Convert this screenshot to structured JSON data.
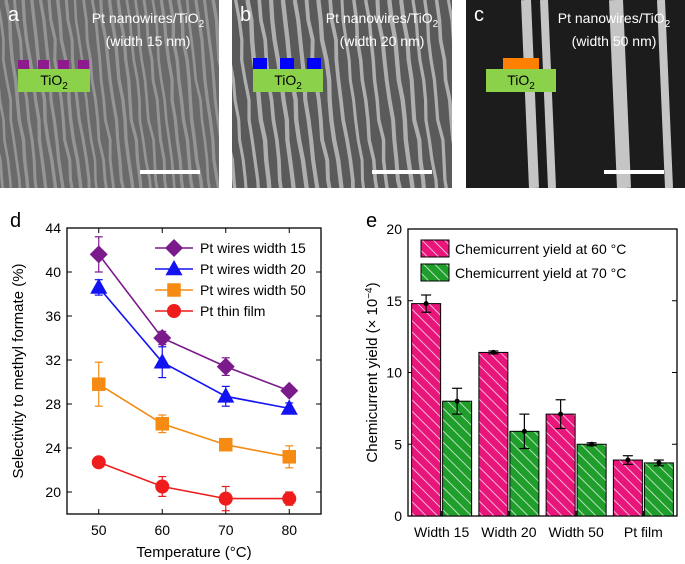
{
  "sem_panels": [
    {
      "letter": "a",
      "label_line1": "Pt nanowires/TiO",
      "label_sub": "2",
      "label_line2": "(width 15 nm)",
      "inset_label": "TiO",
      "inset_sub": "2",
      "wire_color": "#8e1a8e",
      "wire_count": 4
    },
    {
      "letter": "b",
      "label_line1": "Pt nanowires/TiO",
      "label_sub": "2",
      "label_line2": "(width 20 nm)",
      "inset_label": "TiO",
      "inset_sub": "2",
      "wire_color": "#0000ff",
      "wire_count": 3
    },
    {
      "letter": "c",
      "label_line1": "Pt nanowires/TiO",
      "label_sub": "2",
      "label_line2": "(width 50 nm)",
      "inset_label": "TiO",
      "inset_sub": "2",
      "wire_color": "#ff7f00",
      "wire_count": 1
    }
  ],
  "chart_data": [
    {
      "panel": "d",
      "type": "line",
      "xlabel": "Temperature (°C)",
      "ylabel": "Selectivity to methyl formate (%)",
      "xlim": [
        45,
        85
      ],
      "ylim": [
        18,
        44
      ],
      "xticks": [
        50,
        60,
        70,
        80
      ],
      "yticks": [
        20,
        24,
        28,
        32,
        36,
        40,
        44
      ],
      "legend_position": "top-right",
      "series": [
        {
          "name": "Pt wires width 15",
          "color": "#7b1a8a",
          "marker": "diamond",
          "x": [
            50,
            60,
            70,
            80
          ],
          "y": [
            41.6,
            34.0,
            31.4,
            29.2
          ],
          "err": [
            1.6,
            0.6,
            0.8,
            0.3
          ]
        },
        {
          "name": "Pt wires width 20",
          "color": "#1313f2",
          "marker": "triangle",
          "x": [
            50,
            60,
            70,
            80
          ],
          "y": [
            38.6,
            31.8,
            28.7,
            27.6
          ],
          "err": [
            0.7,
            1.4,
            0.9,
            0.5
          ]
        },
        {
          "name": "Pt wires width 50",
          "color": "#f58b12",
          "marker": "square",
          "x": [
            50,
            60,
            70,
            80
          ],
          "y": [
            29.8,
            26.2,
            24.3,
            23.2
          ],
          "err": [
            2.0,
            0.8,
            0.3,
            1.0
          ]
        },
        {
          "name": "Pt thin film",
          "color": "#ee1c1c",
          "marker": "circle",
          "x": [
            50,
            60,
            70,
            80
          ],
          "y": [
            22.7,
            20.5,
            19.4,
            19.4
          ],
          "err": [
            0.3,
            0.9,
            1.1,
            0.6
          ]
        }
      ]
    },
    {
      "panel": "e",
      "type": "bar",
      "ylabel": "Chemicurrent yield (× 10",
      "ylabel_sup": "−4",
      "ylabel_tail": ")",
      "ylim": [
        0,
        20
      ],
      "yticks": [
        0,
        5,
        10,
        15,
        20
      ],
      "categories": [
        "Width 15",
        "Width 20",
        "Width 50",
        "Pt film"
      ],
      "legend_position": "top-right",
      "series": [
        {
          "name": "Chemicurrent yield at 60 °C",
          "color": "#e8167a",
          "pattern": "hatched",
          "values": [
            14.8,
            11.4,
            7.1,
            3.9
          ],
          "err": [
            0.6,
            0.1,
            1.0,
            0.3
          ]
        },
        {
          "name": "Chemicurrent yield at 70 °C",
          "color": "#1f9e2c",
          "pattern": "hatched",
          "values": [
            8.0,
            5.9,
            5.0,
            3.7
          ],
          "err": [
            0.9,
            1.2,
            0.1,
            0.2
          ]
        }
      ]
    }
  ]
}
